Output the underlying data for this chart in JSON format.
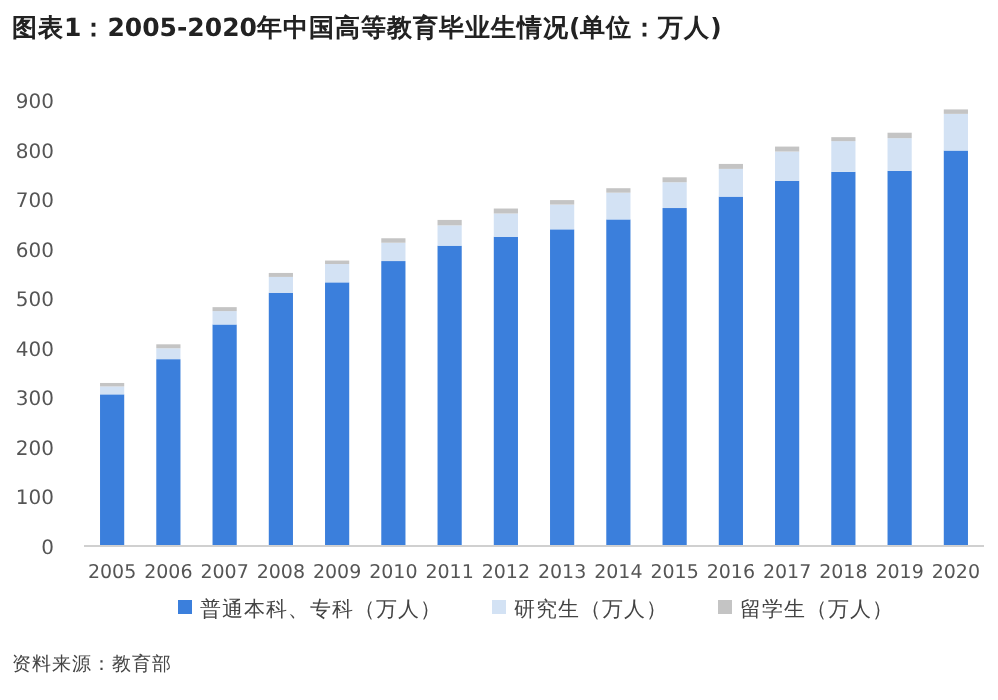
{
  "chart_data": {
    "type": "bar",
    "title": "图表1：2005-2020年中国高等教育毕业生情况(单位：万人)",
    "stacked": true,
    "legend": "bottom",
    "grid": false,
    "ylim": [
      0,
      900
    ],
    "yticks": [
      0,
      100,
      200,
      300,
      400,
      500,
      600,
      700,
      800,
      900
    ],
    "categories": [
      "2005",
      "2006",
      "2007",
      "2008",
      "2009",
      "2010",
      "2011",
      "2012",
      "2013",
      "2014",
      "2015",
      "2016",
      "2017",
      "2018",
      "2019",
      "2020"
    ],
    "series": [
      {
        "name": "普通本科、专科（万人）",
        "color": "#3b7fdc",
        "values": [
          306,
          377,
          447,
          511,
          532,
          575,
          606,
          624,
          639,
          659,
          682,
          705,
          737,
          755,
          757,
          798
        ]
      },
      {
        "name": "研究生（万人）",
        "color": "#d3e2f4",
        "values": [
          16,
          22,
          27,
          32,
          37,
          37,
          41,
          47,
          50,
          54,
          52,
          56,
          59,
          62,
          66,
          74
        ]
      },
      {
        "name": "留学生（万人）",
        "color": "#c4c4c4",
        "values": [
          7,
          8,
          8,
          8,
          7,
          9,
          11,
          10,
          9,
          9,
          10,
          10,
          10,
          8,
          11,
          9
        ]
      }
    ],
    "annotations": [
      "资料来源：教育部"
    ]
  }
}
